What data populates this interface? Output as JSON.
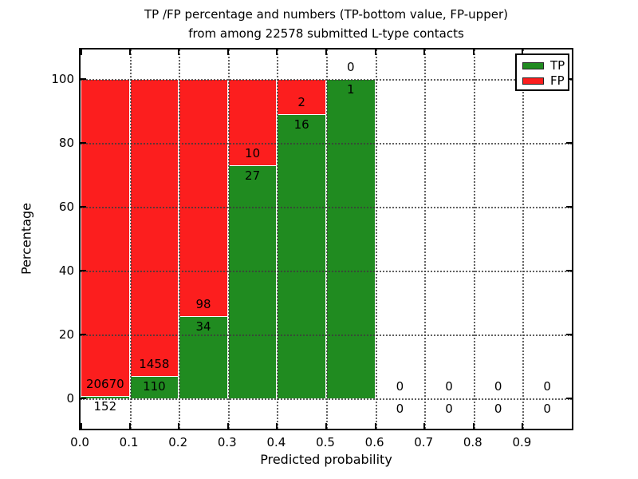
{
  "figure": {
    "title_line1": "TP /FP percentage and numbers (TP-bottom value, FP-upper)",
    "title_line2": "from among 22578 submitted L-type contacts"
  },
  "chart_data": {
    "type": "bar",
    "stacked": true,
    "title": "TP /FP percentage and numbers (TP-bottom value, FP-upper) from among 22578 submitted L-type contacts",
    "total_submitted_contacts": 22578,
    "xlabel": "Predicted probability",
    "ylabel": "Percentage",
    "xlim": [
      0.0,
      1.0
    ],
    "ylim": [
      -10,
      110
    ],
    "grid": true,
    "x_tick_values": [
      0.0,
      0.1,
      0.2,
      0.3,
      0.4,
      0.5,
      0.6,
      0.7,
      0.8,
      0.9
    ],
    "x_tick_labels": [
      "0.0",
      "0.1",
      "0.2",
      "0.3",
      "0.4",
      "0.5",
      "0.6",
      "0.7",
      "0.8",
      "0.9"
    ],
    "y_tick_values": [
      0,
      20,
      40,
      60,
      80,
      100
    ],
    "y_tick_labels": [
      "0",
      "20",
      "40",
      "60",
      "80",
      "100"
    ],
    "legend": {
      "position": "upper right",
      "entries": [
        {
          "label": "TP",
          "color": "#208b20"
        },
        {
          "label": "FP",
          "color": "#fc1e1e"
        }
      ]
    },
    "colors": {
      "tp": "#208b20",
      "fp": "#fc1e1e",
      "bar_edge": "#ffffff"
    },
    "series": [
      {
        "name": "TP",
        "role": "bottom",
        "values_pct": [
          0.73,
          7.02,
          25.76,
          72.97,
          88.89,
          100.0,
          0,
          0,
          0,
          0
        ]
      },
      {
        "name": "FP",
        "role": "upper",
        "values_pct": [
          99.27,
          92.98,
          74.24,
          27.03,
          11.11,
          0.0,
          0,
          0,
          0,
          0
        ]
      }
    ],
    "bins": [
      {
        "x0": 0.0,
        "x1": 0.1,
        "tp_count": 152,
        "fp_count": 20670,
        "tp_pct": 0.73,
        "total_pct": 100
      },
      {
        "x0": 0.1,
        "x1": 0.2,
        "tp_count": 110,
        "fp_count": 1458,
        "tp_pct": 7.02,
        "total_pct": 100
      },
      {
        "x0": 0.2,
        "x1": 0.3,
        "tp_count": 34,
        "fp_count": 98,
        "tp_pct": 25.76,
        "total_pct": 100
      },
      {
        "x0": 0.3,
        "x1": 0.4,
        "tp_count": 27,
        "fp_count": 10,
        "tp_pct": 72.97,
        "total_pct": 100
      },
      {
        "x0": 0.4,
        "x1": 0.5,
        "tp_count": 16,
        "fp_count": 2,
        "tp_pct": 88.89,
        "total_pct": 100
      },
      {
        "x0": 0.5,
        "x1": 0.6,
        "tp_count": 1,
        "fp_count": 0,
        "tp_pct": 100.0,
        "total_pct": 100
      },
      {
        "x0": 0.6,
        "x1": 0.7,
        "tp_count": 0,
        "fp_count": 0,
        "tp_pct": 0,
        "total_pct": 0
      },
      {
        "x0": 0.7,
        "x1": 0.8,
        "tp_count": 0,
        "fp_count": 0,
        "tp_pct": 0,
        "total_pct": 0
      },
      {
        "x0": 0.8,
        "x1": 0.9,
        "tp_count": 0,
        "fp_count": 0,
        "tp_pct": 0,
        "total_pct": 0
      },
      {
        "x0": 0.9,
        "x1": 1.0,
        "tp_count": 0,
        "fp_count": 0,
        "tp_pct": 0,
        "total_pct": 0
      }
    ]
  }
}
